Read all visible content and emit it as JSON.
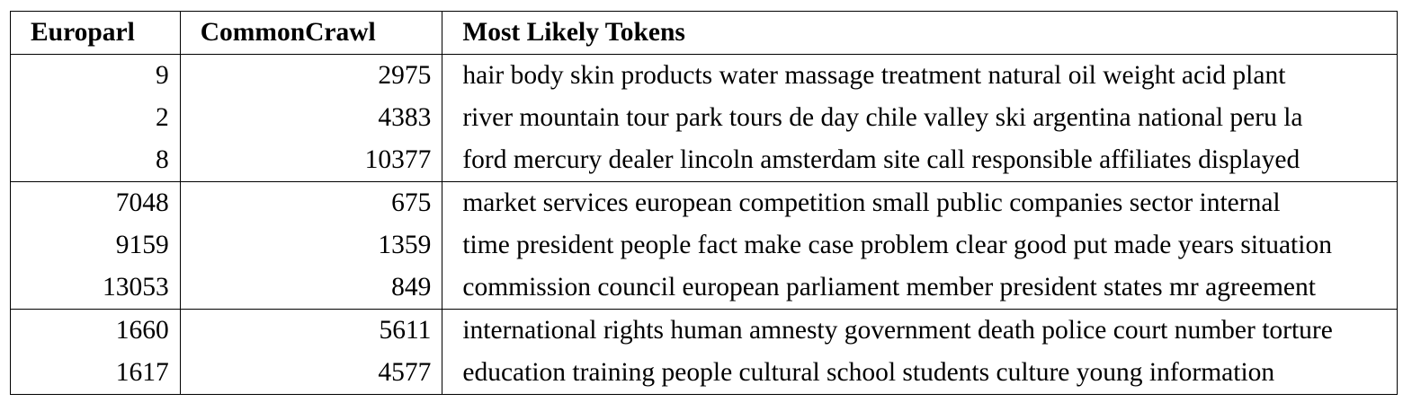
{
  "table": {
    "headers": {
      "europarl": "Europarl",
      "commoncrawl": "CommonCrawl",
      "tokens": "Most Likely Tokens"
    },
    "groups": [
      {
        "rows": [
          {
            "europarl": "9",
            "commoncrawl": "2975",
            "tokens": "hair body skin products water massage treatment natural oil weight acid plant"
          },
          {
            "europarl": "2",
            "commoncrawl": "4383",
            "tokens": "river mountain tour park tours de day chile valley ski argentina national peru la"
          },
          {
            "europarl": "8",
            "commoncrawl": "10377",
            "tokens": "ford mercury dealer lincoln amsterdam site call responsible affiliates displayed"
          }
        ]
      },
      {
        "rows": [
          {
            "europarl": "7048",
            "commoncrawl": "675",
            "tokens": "market services european competition small public companies sector internal"
          },
          {
            "europarl": "9159",
            "commoncrawl": "1359",
            "tokens": "time president people fact make case problem clear good put made years situation"
          },
          {
            "europarl": "13053",
            "commoncrawl": "849",
            "tokens": "commission council european parliament member president states mr agreement"
          }
        ]
      },
      {
        "rows": [
          {
            "europarl": "1660",
            "commoncrawl": "5611",
            "tokens": "international rights human amnesty government death police court number torture"
          },
          {
            "europarl": "1617",
            "commoncrawl": "4577",
            "tokens": "education training people cultural school students culture young information"
          }
        ]
      }
    ]
  }
}
